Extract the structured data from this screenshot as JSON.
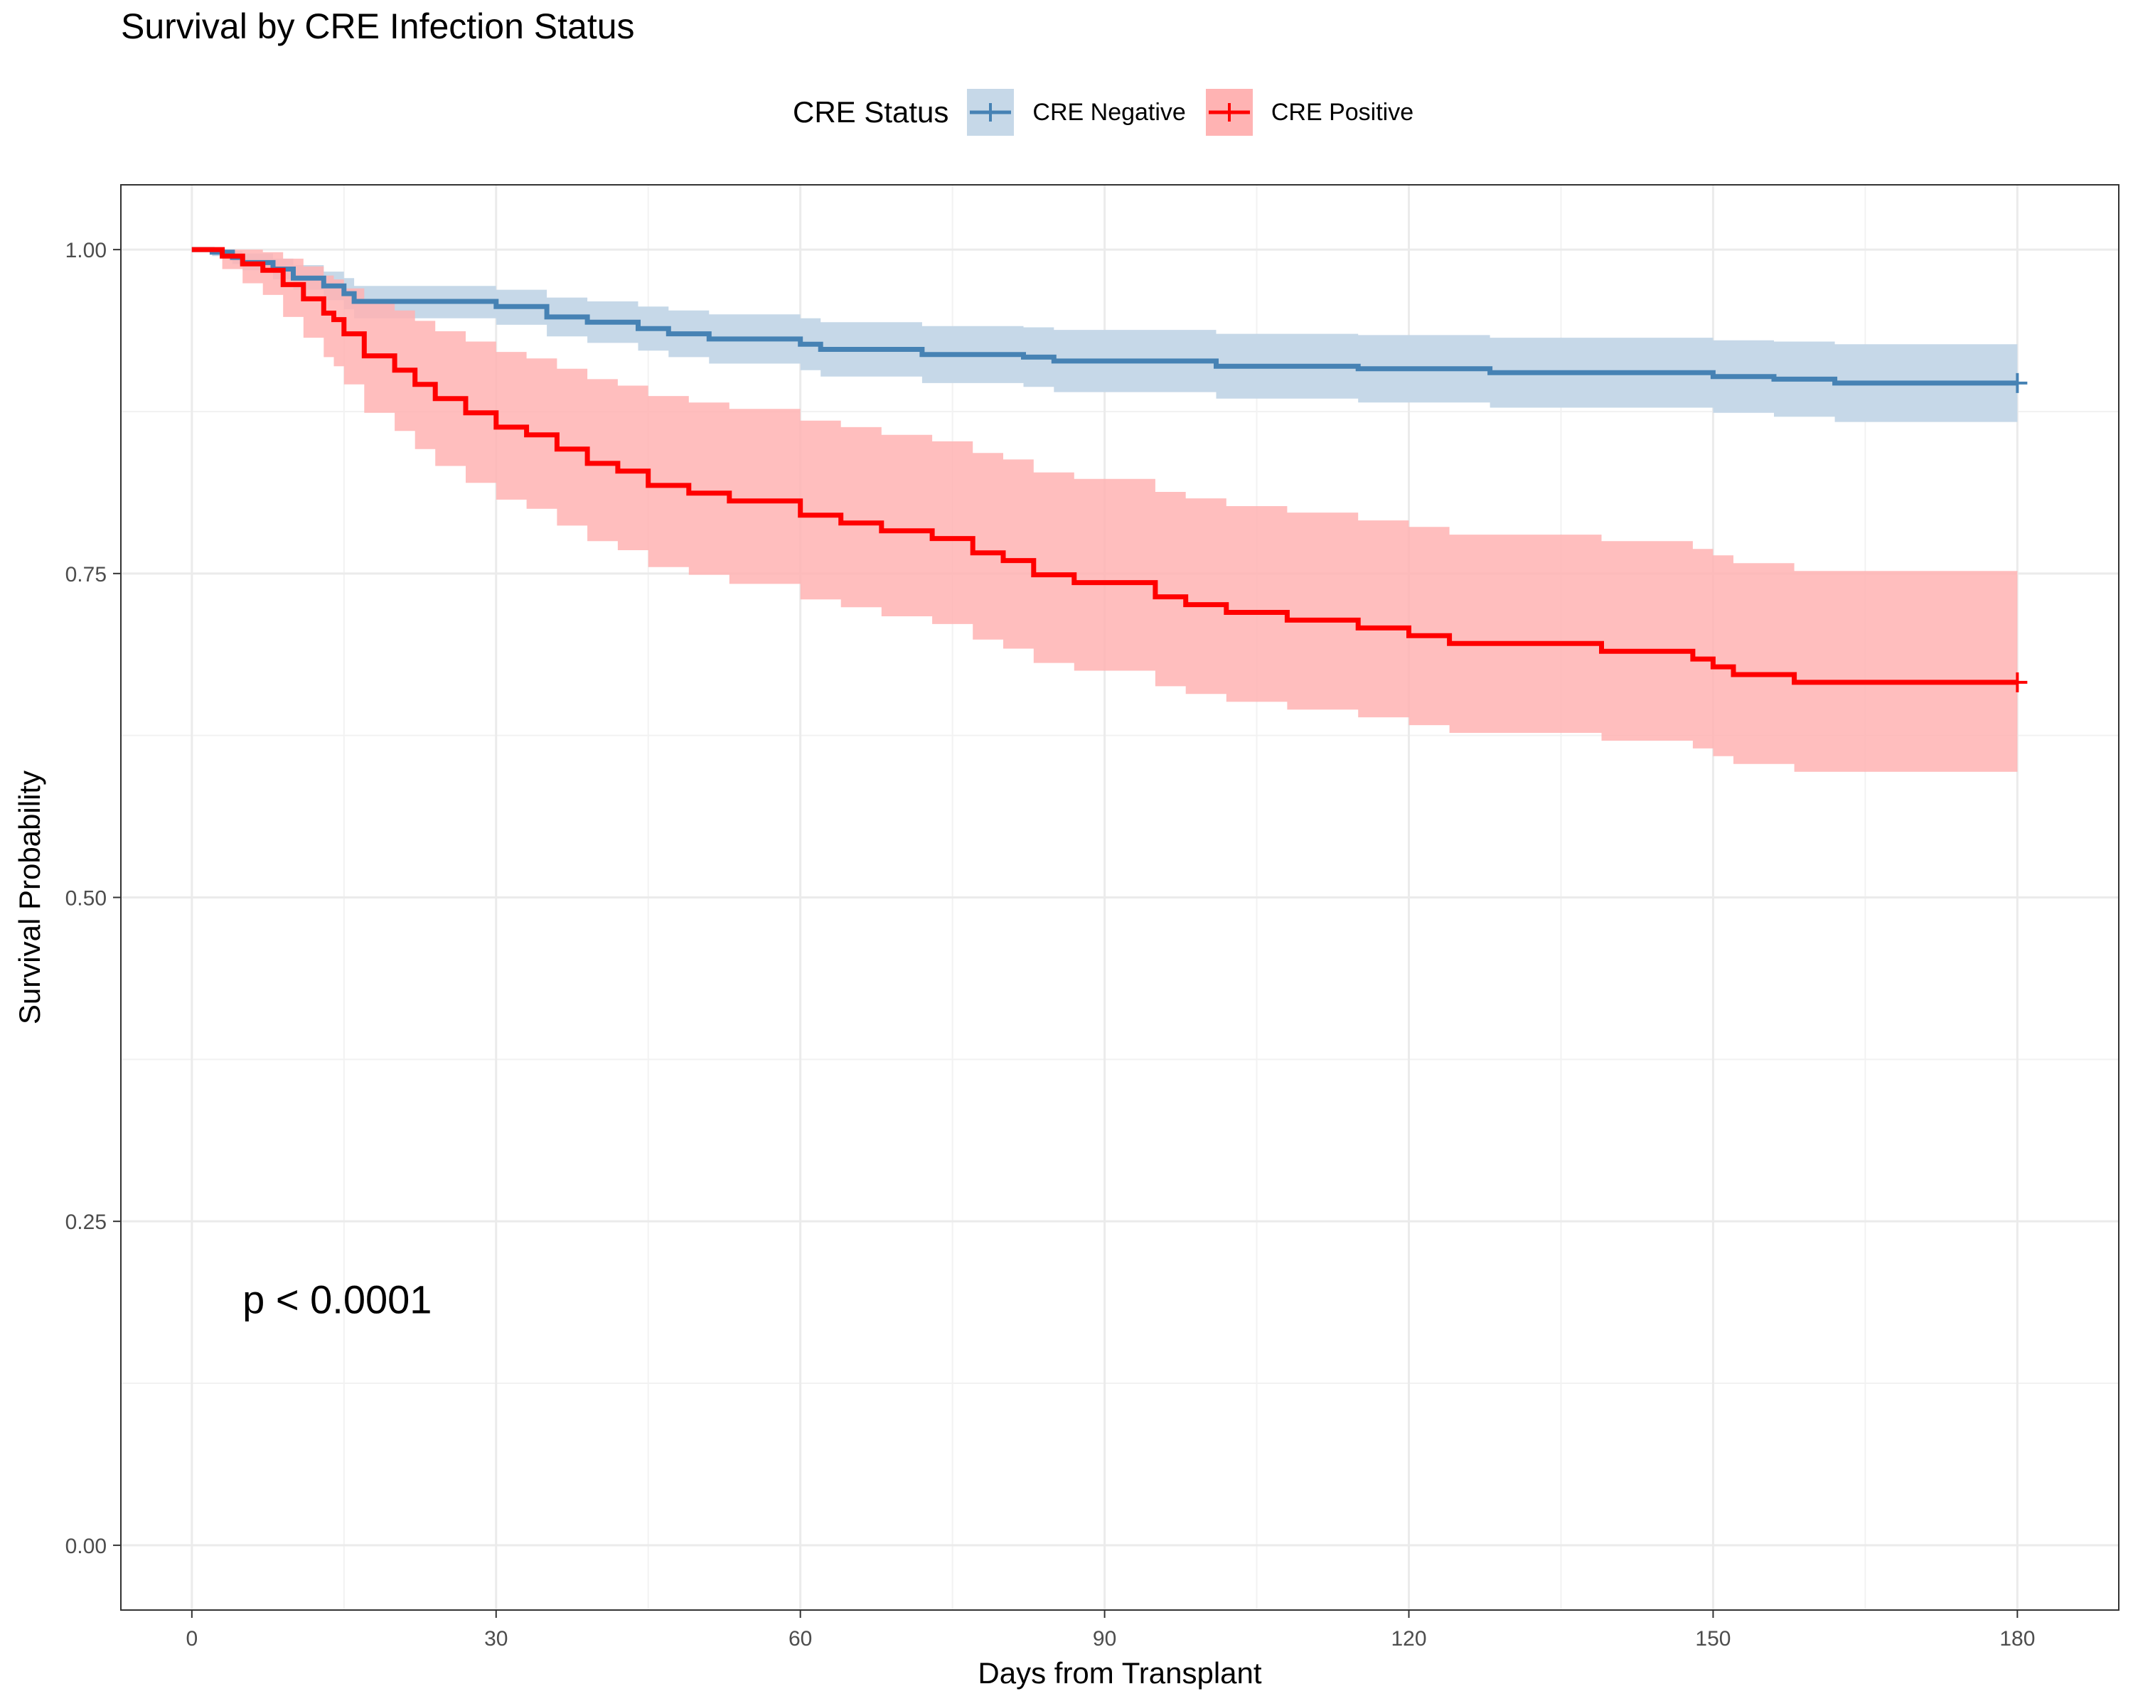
{
  "chart_data": {
    "type": "line",
    "subtype": "kaplan-meier step",
    "title": "Survival by CRE Infection Status",
    "xlabel": "Days from Transplant",
    "ylabel": "Survival Probability",
    "xlim": [
      -7,
      190
    ],
    "ylim": [
      -0.05,
      1.05
    ],
    "x_ticks": [
      0,
      30,
      60,
      90,
      120,
      150,
      180
    ],
    "x_tick_labels": [
      "0",
      "30",
      "60",
      "90",
      "120",
      "150",
      "180"
    ],
    "y_ticks": [
      0,
      0.25,
      0.5,
      0.75,
      1.0
    ],
    "y_tick_labels": [
      "0.00",
      "0.25",
      "0.50",
      "0.75",
      "1.00"
    ],
    "grid": true,
    "legend": {
      "title": "CRE Status",
      "position": "top"
    },
    "annotation": "p < 0.0001",
    "series": [
      {
        "name": "CRE Negative",
        "color": "#4682b4",
        "ci_fill": "#c6d8e8",
        "x": [
          0,
          2,
          4,
          5,
          8,
          10,
          13,
          15,
          16,
          30,
          35,
          39,
          44,
          47,
          51,
          60,
          62,
          72,
          82,
          85,
          101,
          115,
          128,
          150,
          156,
          162,
          180
        ],
        "y": [
          1.0,
          0.998,
          0.994,
          0.99,
          0.985,
          0.978,
          0.972,
          0.966,
          0.96,
          0.956,
          0.948,
          0.944,
          0.939,
          0.935,
          0.931,
          0.927,
          0.923,
          0.919,
          0.917,
          0.914,
          0.91,
          0.908,
          0.905,
          0.902,
          0.9,
          0.897,
          0.897
        ],
        "lower": [
          1.0,
          0.995,
          0.989,
          0.984,
          0.977,
          0.969,
          0.961,
          0.954,
          0.947,
          0.942,
          0.933,
          0.928,
          0.922,
          0.917,
          0.912,
          0.907,
          0.902,
          0.897,
          0.894,
          0.89,
          0.885,
          0.882,
          0.878,
          0.874,
          0.871,
          0.867,
          0.867
        ],
        "upper": [
          1.0,
          1.0,
          0.999,
          0.997,
          0.993,
          0.988,
          0.983,
          0.978,
          0.972,
          0.969,
          0.963,
          0.96,
          0.956,
          0.953,
          0.95,
          0.947,
          0.944,
          0.941,
          0.94,
          0.938,
          0.935,
          0.934,
          0.932,
          0.93,
          0.929,
          0.927,
          0.927
        ],
        "censor_x": [
          180
        ],
        "censor_y": [
          0.897
        ]
      },
      {
        "name": "CRE Positive",
        "color": "#ff0000",
        "ci_fill": "#ffb3b3",
        "x": [
          0,
          3,
          5,
          7,
          9,
          11,
          13,
          14,
          15,
          17,
          20,
          22,
          24,
          27,
          30,
          33,
          36,
          39,
          42,
          45,
          49,
          53,
          60,
          64,
          68,
          73,
          77,
          80,
          83,
          87,
          95,
          98,
          102,
          108,
          115,
          120,
          124,
          139,
          148,
          150,
          152,
          158,
          180
        ],
        "y": [
          1.0,
          0.995,
          0.989,
          0.984,
          0.973,
          0.962,
          0.951,
          0.946,
          0.935,
          0.918,
          0.907,
          0.896,
          0.885,
          0.874,
          0.863,
          0.857,
          0.846,
          0.835,
          0.829,
          0.818,
          0.812,
          0.806,
          0.795,
          0.789,
          0.783,
          0.777,
          0.766,
          0.76,
          0.749,
          0.743,
          0.732,
          0.726,
          0.72,
          0.714,
          0.708,
          0.702,
          0.696,
          0.69,
          0.684,
          0.678,
          0.672,
          0.666,
          0.666
        ],
        "lower": [
          1.0,
          0.985,
          0.974,
          0.965,
          0.948,
          0.932,
          0.917,
          0.91,
          0.896,
          0.874,
          0.86,
          0.846,
          0.833,
          0.82,
          0.807,
          0.8,
          0.787,
          0.775,
          0.768,
          0.755,
          0.749,
          0.742,
          0.73,
          0.724,
          0.717,
          0.711,
          0.699,
          0.692,
          0.681,
          0.675,
          0.663,
          0.657,
          0.651,
          0.645,
          0.639,
          0.633,
          0.627,
          0.621,
          0.615,
          0.609,
          0.603,
          0.597,
          0.597
        ],
        "upper": [
          1.0,
          1.0,
          1.0,
          0.998,
          0.993,
          0.987,
          0.98,
          0.977,
          0.97,
          0.96,
          0.953,
          0.945,
          0.937,
          0.929,
          0.921,
          0.916,
          0.908,
          0.9,
          0.895,
          0.887,
          0.882,
          0.877,
          0.868,
          0.863,
          0.857,
          0.852,
          0.843,
          0.838,
          0.828,
          0.823,
          0.813,
          0.808,
          0.802,
          0.797,
          0.791,
          0.786,
          0.78,
          0.775,
          0.769,
          0.764,
          0.758,
          0.752,
          0.752
        ],
        "censor_x": [
          180
        ],
        "censor_y": [
          0.666
        ]
      }
    ]
  }
}
